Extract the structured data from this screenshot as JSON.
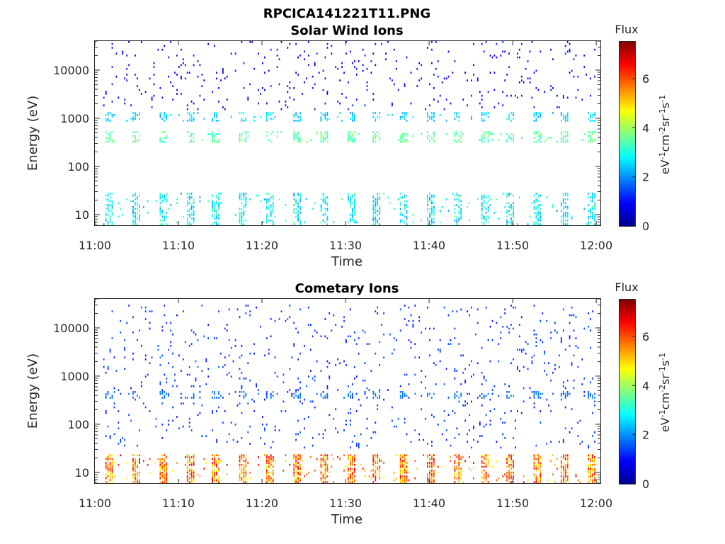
{
  "figure": {
    "title": "RPCICA141221T11.PNG"
  },
  "chart_data": [
    {
      "type": "heatmap",
      "title": "Solar Wind Ions",
      "xlabel": "Time",
      "ylabel": "Energy (eV)",
      "xticks": [
        "11:00",
        "11:10",
        "11:20",
        "11:30",
        "11:40",
        "11:50",
        "12:00"
      ],
      "xlim_minutes": [
        0,
        60.5
      ],
      "yscale": "log",
      "ylim": [
        6,
        40000
      ],
      "yticks": [
        10,
        100,
        1000,
        10000
      ],
      "ytick_labels": [
        "10",
        "100",
        "1000",
        "10000"
      ],
      "colorbar": {
        "title": "Flux",
        "label": "eV-1cm-2sr-1s-1",
        "range": [
          0,
          7.5
        ],
        "ticks": [
          0,
          2,
          4,
          6
        ],
        "colormap": "jet"
      },
      "sweep_period_minutes": 3.2,
      "sweep_start_minutes": 1.2,
      "bands": [
        {
          "energy_range_ev": [
            6,
            28
          ],
          "flux_range": [
            2,
            3.5
          ],
          "description": "low energy bursts"
        },
        {
          "energy_range_ev": [
            300,
            550
          ],
          "flux_range": [
            3,
            4
          ],
          "description": "main solar wind peak"
        },
        {
          "energy_range_ev": [
            850,
            1300
          ],
          "flux_range": [
            2,
            3
          ],
          "description": "secondary peak"
        },
        {
          "energy_range_ev": [
            1500,
            40000
          ],
          "flux_range": [
            0.5,
            1.2
          ],
          "description": "sparse high energy counts"
        }
      ]
    },
    {
      "type": "heatmap",
      "title": "Cometary Ions",
      "xlabel": "Time",
      "ylabel": "Energy (eV)",
      "xticks": [
        "11:00",
        "11:10",
        "11:20",
        "11:30",
        "11:40",
        "11:50",
        "12:00"
      ],
      "xlim_minutes": [
        0,
        60.5
      ],
      "yscale": "log",
      "ylim": [
        6,
        40000
      ],
      "yticks": [
        10,
        100,
        1000,
        10000
      ],
      "ytick_labels": [
        "10",
        "100",
        "1000",
        "10000"
      ],
      "colorbar": {
        "title": "Flux",
        "label": "eV-1cm-2sr-1s-1",
        "range": [
          0,
          7.5
        ],
        "ticks": [
          0,
          2,
          4,
          6
        ],
        "colormap": "jet"
      },
      "sweep_period_minutes": 3.2,
      "sweep_start_minutes": 1.2,
      "bands": [
        {
          "energy_range_ev": [
            6,
            24
          ],
          "flux_range": [
            4.5,
            6.8
          ],
          "description": "intense low energy cometary ions"
        },
        {
          "energy_range_ev": [
            350,
            480
          ],
          "flux_range": [
            1.5,
            2
          ],
          "description": "weak mid energy"
        },
        {
          "energy_range_ev": [
            30,
            30000
          ],
          "flux_range": [
            1,
            1.6
          ],
          "description": "sparse scattered counts"
        }
      ]
    }
  ]
}
